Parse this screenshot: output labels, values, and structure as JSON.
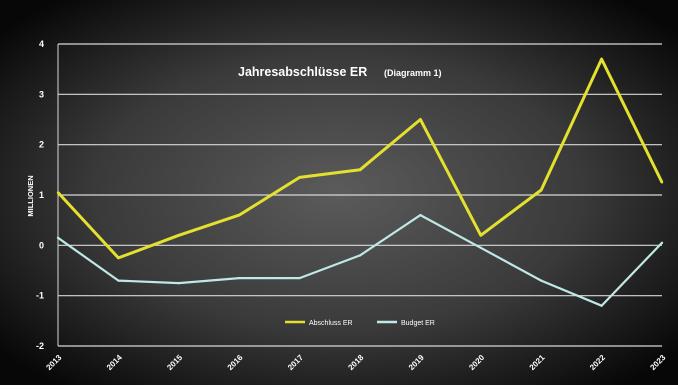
{
  "chart_data": {
    "type": "line",
    "title": "Jahresabschlüsse ER",
    "subtitle": "(Diagramm 1)",
    "ylabel": "MILLIONEN",
    "xlabel": "",
    "x": [
      "2013",
      "2014",
      "2015",
      "2016",
      "2017",
      "2018",
      "2019",
      "2020",
      "2021",
      "2022",
      "2023"
    ],
    "yticks": [
      "4",
      "3",
      "2",
      "1",
      "0",
      "-1",
      "-2"
    ],
    "ylim": [
      -2,
      4
    ],
    "grid": true,
    "legend_position": "bottom-center",
    "series": [
      {
        "name": "Abschluss ER",
        "color": "#e3e02e",
        "values": [
          1.05,
          -0.25,
          0.2,
          0.6,
          1.35,
          1.5,
          2.5,
          0.2,
          1.1,
          3.7,
          1.25
        ]
      },
      {
        "name": "Budget ER",
        "color": "#bfe8e6",
        "values": [
          0.15,
          -0.7,
          -0.75,
          -0.65,
          -0.65,
          -0.2,
          0.6,
          -0.05,
          -0.7,
          -1.2,
          0.05
        ]
      }
    ],
    "colors": {
      "background_outer": "#070707",
      "background_center": "#5b5b5b",
      "grid": "#d8d8d8"
    }
  }
}
